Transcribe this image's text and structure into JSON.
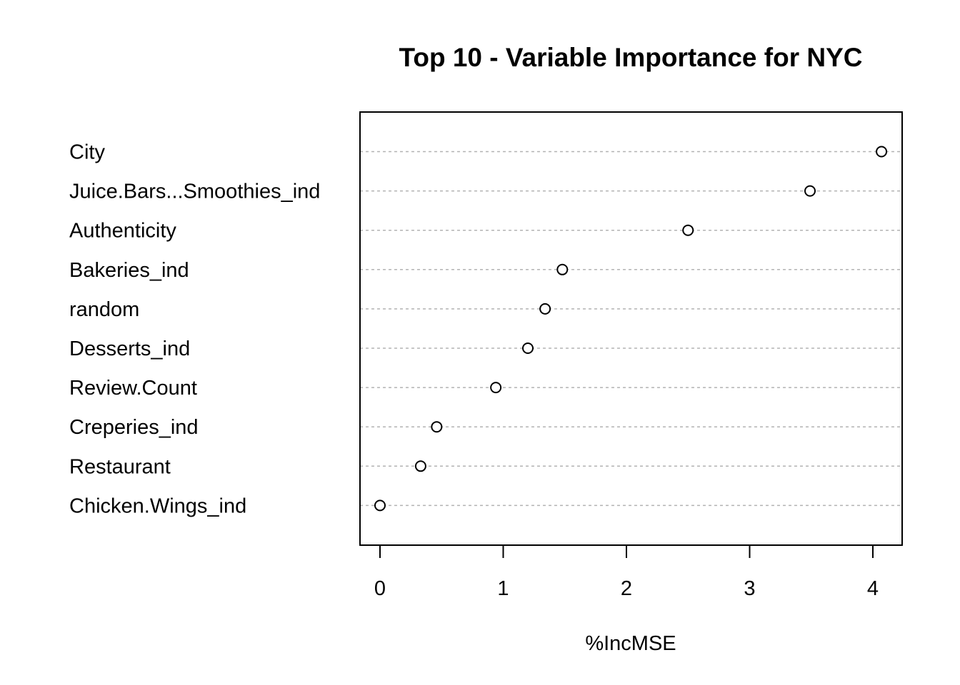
{
  "chart_data": {
    "type": "scatter",
    "title": "Top 10 - Variable Importance for NYC",
    "xlabel": "%IncMSE",
    "ylabel": "",
    "xlim": [
      0,
      4
    ],
    "x_ticks": [
      0,
      1,
      2,
      3,
      4
    ],
    "grid": true,
    "categories": [
      "City",
      "Juice.Bars...Smoothies_ind",
      "Authenticity",
      "Bakeries_ind",
      "random",
      "Desserts_ind",
      "Review.Count",
      "Creperies_ind",
      "Restaurant",
      "Chicken.Wings_ind"
    ],
    "values": [
      4.07,
      3.49,
      2.5,
      1.48,
      1.34,
      1.2,
      0.94,
      0.46,
      0.33,
      0.0
    ]
  }
}
